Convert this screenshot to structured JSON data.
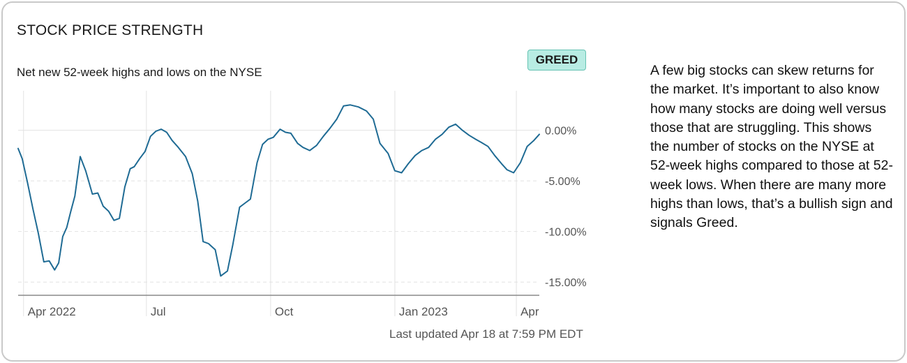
{
  "card": {
    "title": "STOCK PRICE STRENGTH",
    "subtitle": "Net new 52-week highs and lows on the NYSE",
    "badge": "GREED",
    "last_updated": "Last updated Apr 18 at 7:59 PM EDT",
    "description": "A few big stocks can skew returns for the market. It’s important to also know how many stocks are doing well versus those that are struggling. This shows the number of stocks on the NYSE at 52-week highs compared to those at 52-week lows. When there are many more highs than lows, that’s a bullish sign and signals Greed."
  },
  "colors": {
    "line": "#1f6b94",
    "grid": "#e2e2e2",
    "axis": "#555555",
    "badge_bg": "#b8ece3",
    "badge_border": "#66c3b3"
  },
  "chart_data": {
    "type": "line",
    "title": "Net new 52-week highs and lows on the NYSE",
    "xlabel": "",
    "ylabel": "",
    "xlim": [
      "2022-03-28",
      "2023-04-18"
    ],
    "ylim": [
      -16.3,
      3.9
    ],
    "y_ticks": [
      {
        "value": 0,
        "label": "0.00%"
      },
      {
        "value": -5,
        "label": "-5.00%"
      },
      {
        "value": -10,
        "label": "-10.00%"
      },
      {
        "value": -15,
        "label": "-15.00%"
      }
    ],
    "x_ticks": [
      {
        "value": "2022-04-01",
        "label": "Apr 2022"
      },
      {
        "value": "2022-07-01",
        "label": "Jul"
      },
      {
        "value": "2022-10-01",
        "label": "Oct"
      },
      {
        "value": "2023-01-01",
        "label": "Jan 2023"
      },
      {
        "value": "2023-04-01",
        "label": "Apr"
      }
    ],
    "grid": true,
    "series": [
      {
        "x": [
          "2022-03-28",
          "2022-03-31",
          "2022-04-04",
          "2022-04-08",
          "2022-04-12",
          "2022-04-16",
          "2022-04-20",
          "2022-04-24",
          "2022-04-27",
          "2022-04-30",
          "2022-05-03",
          "2022-05-06",
          "2022-05-09",
          "2022-05-13",
          "2022-05-17",
          "2022-05-22",
          "2022-05-26",
          "2022-05-30",
          "2022-06-03",
          "2022-06-07",
          "2022-06-11",
          "2022-06-15",
          "2022-06-19",
          "2022-06-22",
          "2022-06-26",
          "2022-06-30",
          "2022-07-04",
          "2022-07-08",
          "2022-07-12",
          "2022-07-16",
          "2022-07-20",
          "2022-07-24",
          "2022-07-30",
          "2022-08-04",
          "2022-08-08",
          "2022-08-12",
          "2022-08-16",
          "2022-08-21",
          "2022-08-25",
          "2022-08-30",
          "2022-09-03",
          "2022-09-08",
          "2022-09-12",
          "2022-09-16",
          "2022-09-21",
          "2022-09-25",
          "2022-09-29",
          "2022-10-03",
          "2022-10-08",
          "2022-10-12",
          "2022-10-16",
          "2022-10-21",
          "2022-10-25",
          "2022-10-30",
          "2022-11-04",
          "2022-11-09",
          "2022-11-14",
          "2022-11-19",
          "2022-11-24",
          "2022-11-29",
          "2022-12-05",
          "2022-12-11",
          "2022-12-16",
          "2022-12-21",
          "2022-12-27",
          "2023-01-01",
          "2023-01-06",
          "2023-01-11",
          "2023-01-16",
          "2023-01-21",
          "2023-01-26",
          "2023-01-31",
          "2023-02-05",
          "2023-02-10",
          "2023-02-15",
          "2023-02-20",
          "2023-02-25",
          "2023-03-02",
          "2023-03-06",
          "2023-03-11",
          "2023-03-16",
          "2023-03-21",
          "2023-03-25",
          "2023-03-30",
          "2023-04-04",
          "2023-04-09",
          "2023-04-14",
          "2023-04-18"
        ],
        "values": [
          -1.8,
          -2.8,
          -5.2,
          -7.8,
          -10.2,
          -13.0,
          -12.9,
          -13.8,
          -13.1,
          -10.5,
          -9.6,
          -8.0,
          -6.5,
          -2.6,
          -4.0,
          -6.3,
          -6.2,
          -7.5,
          -8.0,
          -8.9,
          -8.7,
          -5.6,
          -3.8,
          -3.6,
          -2.8,
          -2.1,
          -0.6,
          -0.1,
          0.1,
          -0.2,
          -1.0,
          -1.6,
          -2.6,
          -4.3,
          -7.0,
          -11.0,
          -11.2,
          -11.8,
          -14.4,
          -13.9,
          -11.3,
          -7.6,
          -7.2,
          -6.8,
          -3.2,
          -1.4,
          -0.9,
          -0.7,
          0.1,
          -0.2,
          -0.3,
          -1.3,
          -1.7,
          -2.0,
          -1.5,
          -0.6,
          0.2,
          1.1,
          2.4,
          2.5,
          2.3,
          1.9,
          1.1,
          -1.3,
          -2.3,
          -4.0,
          -4.2,
          -3.3,
          -2.5,
          -2.0,
          -1.7,
          -0.9,
          -0.4,
          0.3,
          0.6,
          0.0,
          -0.5,
          -0.9,
          -1.2,
          -1.6,
          -2.5,
          -3.3,
          -3.9,
          -4.2,
          -3.2,
          -1.6,
          -1.0,
          -0.4
        ]
      }
    ]
  }
}
